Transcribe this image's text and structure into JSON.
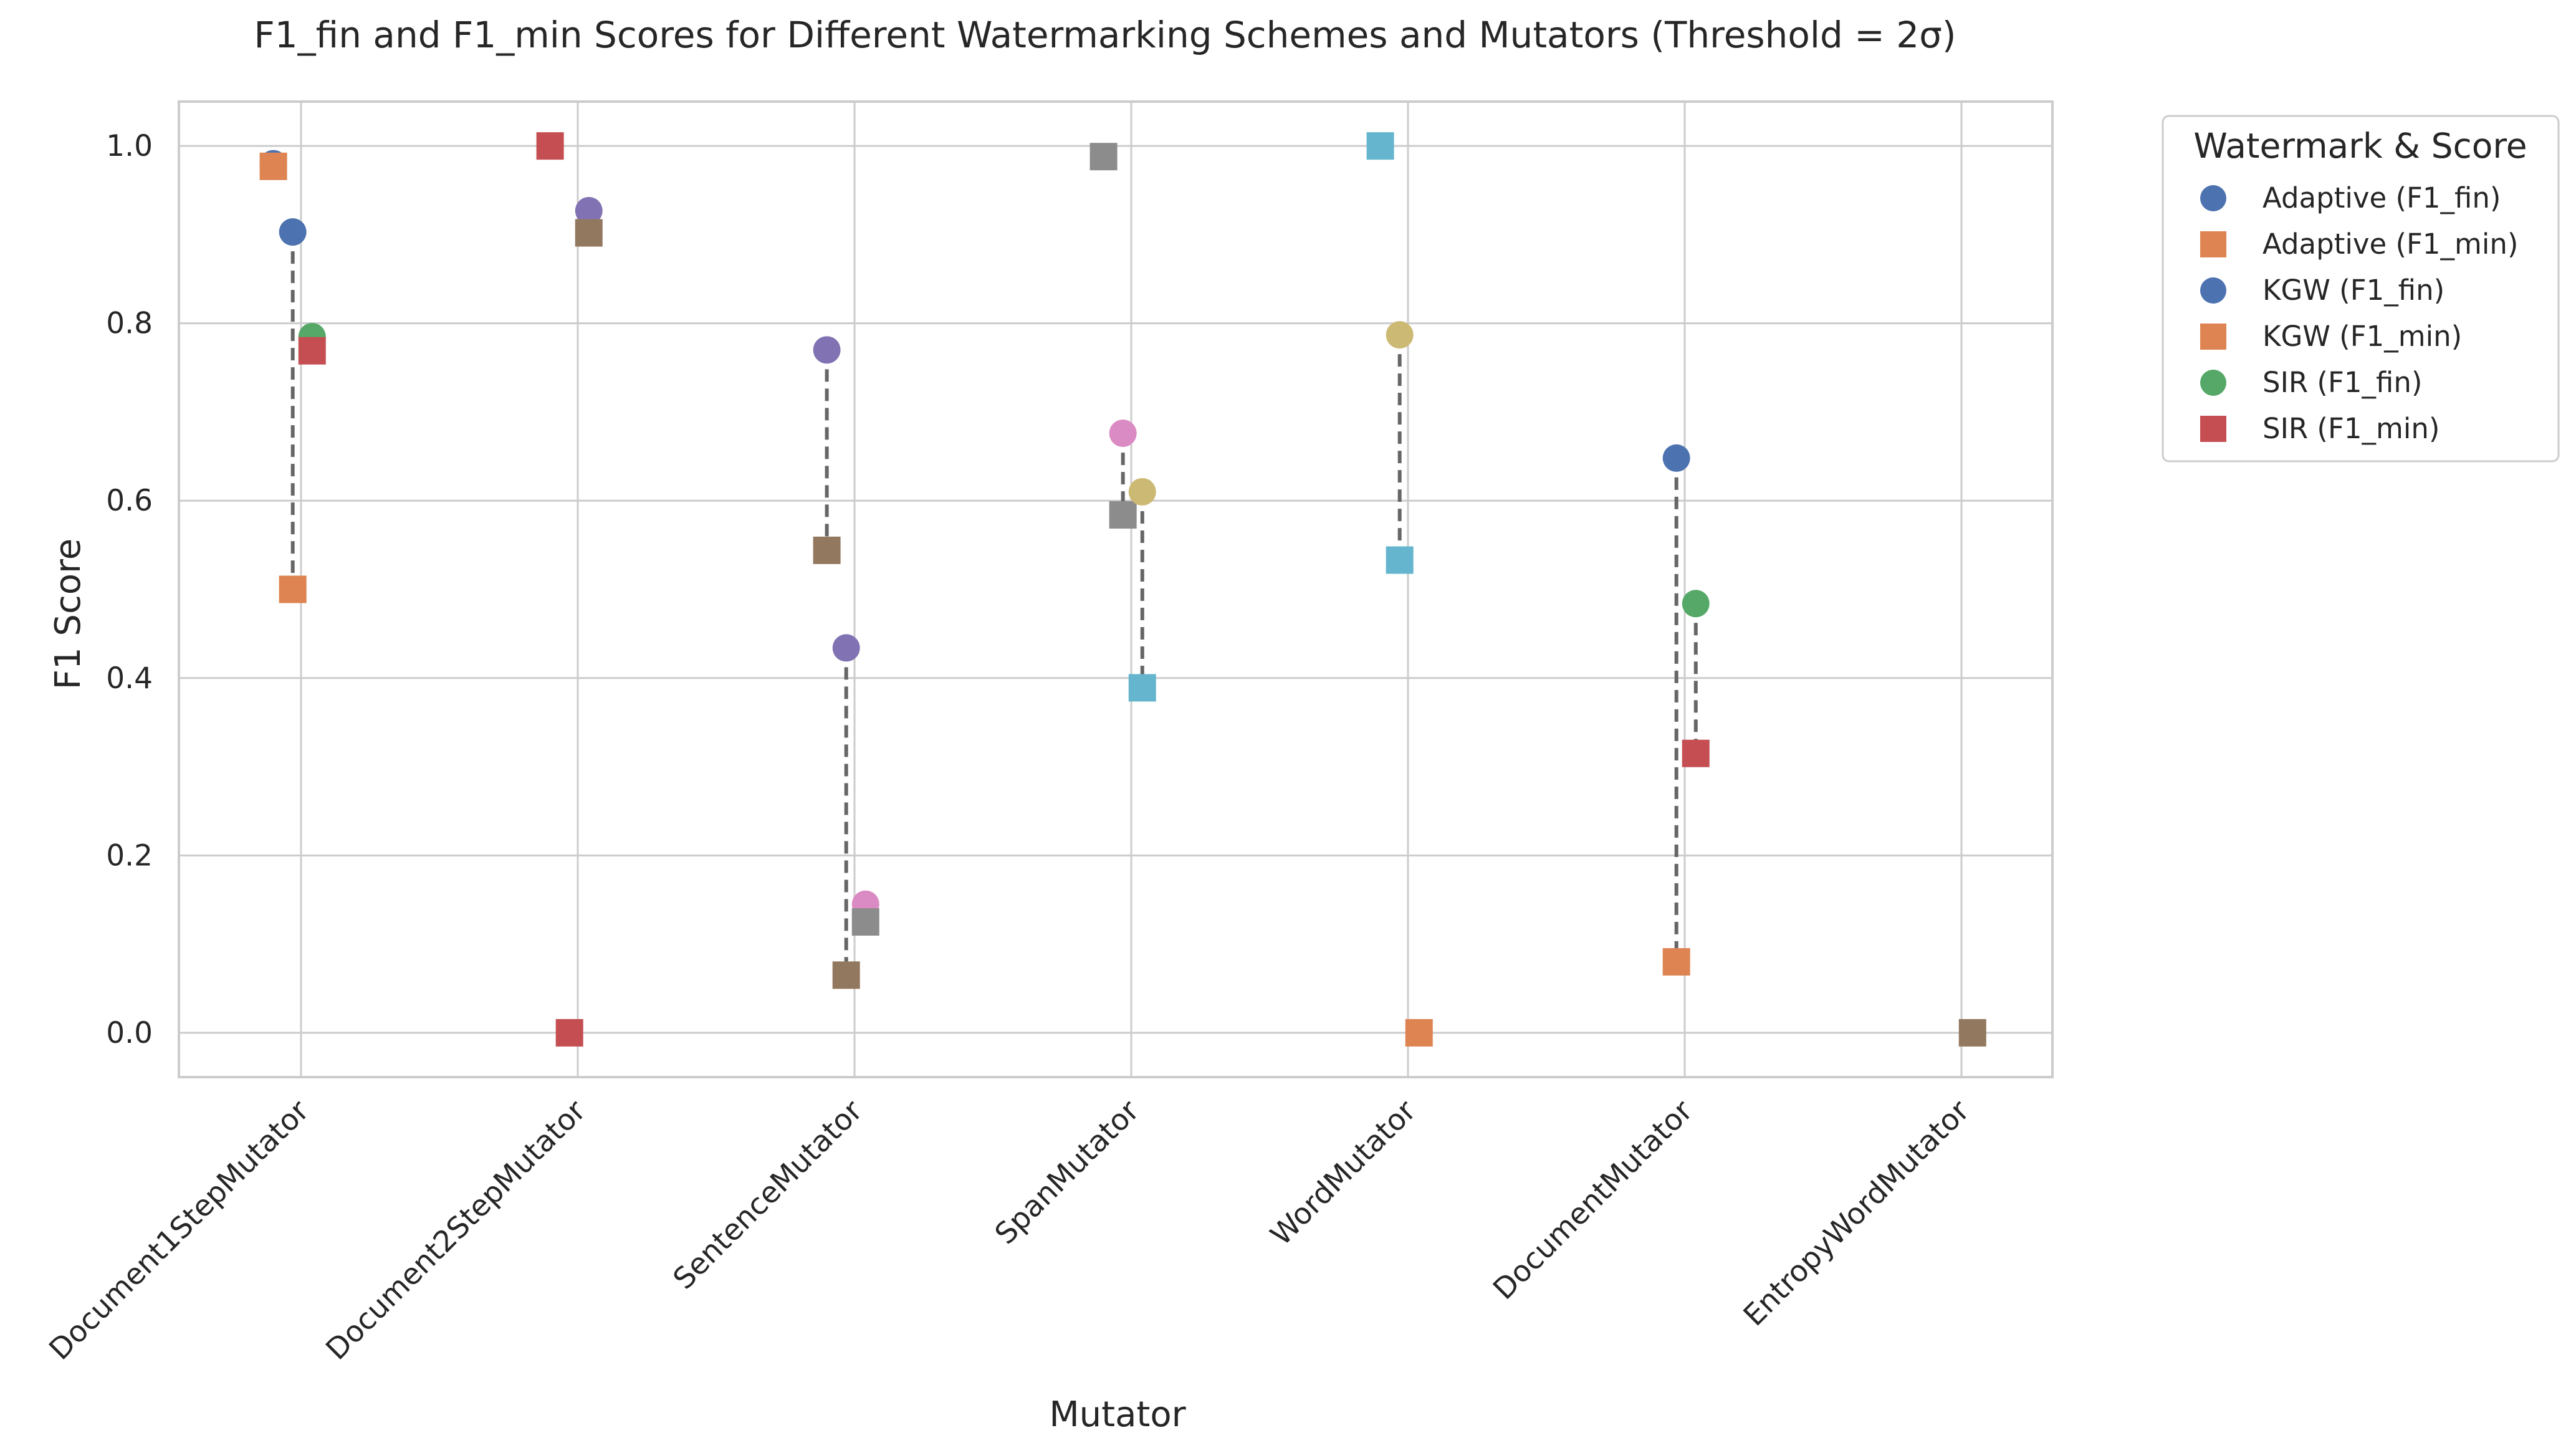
{
  "chart_data": {
    "type": "scatter",
    "title": "F1_fin and F1_min Scores for Different Watermarking Schemes and Mutators (Threshold = 2σ)",
    "xlabel": "Mutator",
    "ylabel": "F1 Score",
    "ylim": [
      -0.05,
      1.05
    ],
    "yticks": [
      "0.0",
      "0.2",
      "0.4",
      "0.6",
      "0.8",
      "1.0"
    ],
    "grid": true,
    "categories": [
      "Document1StepMutator",
      "Document2StepMutator",
      "SentenceMutator",
      "SpanMutator",
      "WordMutator",
      "DocumentMutator",
      "EntropyWordMutator"
    ],
    "legend": {
      "title": "Watermark & Score",
      "placement": "outside-top-right",
      "entries": [
        {
          "label": "Adaptive (F1_fin)",
          "marker": "circle",
          "color": "#4c72b0"
        },
        {
          "label": "Adaptive (F1_min)",
          "marker": "square",
          "color": "#dd8452"
        },
        {
          "label": "KGW (F1_fin)",
          "marker": "circle",
          "color": "#4c72b0"
        },
        {
          "label": "KGW (F1_min)",
          "marker": "square",
          "color": "#dd8452"
        },
        {
          "label": "SIR (F1_fin)",
          "marker": "circle",
          "color": "#55a868"
        },
        {
          "label": "SIR (F1_min)",
          "marker": "square",
          "color": "#c44e52"
        }
      ]
    },
    "points": [
      {
        "category": 0,
        "offset": -0.1,
        "marker": "circle",
        "color": "#4c72b0",
        "value": 0.98
      },
      {
        "category": 0,
        "offset": -0.1,
        "marker": "square",
        "color": "#dd8452",
        "value": 0.977
      },
      {
        "category": 0,
        "offset": -0.03,
        "marker": "circle",
        "color": "#4c72b0",
        "value": 0.903
      },
      {
        "category": 0,
        "offset": -0.03,
        "marker": "square",
        "color": "#dd8452",
        "value": 0.5
      },
      {
        "category": 0,
        "offset": 0.04,
        "marker": "circle",
        "color": "#55a868",
        "value": 0.785
      },
      {
        "category": 0,
        "offset": 0.04,
        "marker": "square",
        "color": "#c44e52",
        "value": 0.769
      },
      {
        "category": 1,
        "offset": -0.1,
        "marker": "square",
        "color": "#c44e52",
        "value": 1.0
      },
      {
        "category": 1,
        "offset": -0.03,
        "marker": "square",
        "color": "#c44e52",
        "value": 0.0
      },
      {
        "category": 1,
        "offset": 0.04,
        "marker": "circle",
        "color": "#8172b3",
        "value": 0.927
      },
      {
        "category": 1,
        "offset": 0.04,
        "marker": "square",
        "color": "#937860",
        "value": 0.902
      },
      {
        "category": 2,
        "offset": -0.1,
        "marker": "circle",
        "color": "#8172b3",
        "value": 0.77
      },
      {
        "category": 2,
        "offset": -0.1,
        "marker": "square",
        "color": "#937860",
        "value": 0.544
      },
      {
        "category": 2,
        "offset": -0.03,
        "marker": "circle",
        "color": "#8172b3",
        "value": 0.434
      },
      {
        "category": 2,
        "offset": -0.03,
        "marker": "square",
        "color": "#937860",
        "value": 0.065
      },
      {
        "category": 2,
        "offset": 0.04,
        "marker": "circle",
        "color": "#da8bc3",
        "value": 0.145
      },
      {
        "category": 2,
        "offset": 0.04,
        "marker": "square",
        "color": "#8c8c8c",
        "value": 0.125
      },
      {
        "category": 3,
        "offset": -0.1,
        "marker": "square",
        "color": "#8c8c8c",
        "value": 0.988
      },
      {
        "category": 3,
        "offset": -0.03,
        "marker": "circle",
        "color": "#da8bc3",
        "value": 0.676
      },
      {
        "category": 3,
        "offset": -0.03,
        "marker": "square",
        "color": "#8c8c8c",
        "value": 0.584
      },
      {
        "category": 3,
        "offset": 0.04,
        "marker": "circle",
        "color": "#ccb974",
        "value": 0.61
      },
      {
        "category": 3,
        "offset": 0.04,
        "marker": "square",
        "color": "#64b5cd",
        "value": 0.389
      },
      {
        "category": 4,
        "offset": -0.1,
        "marker": "square",
        "color": "#64b5cd",
        "value": 1.0
      },
      {
        "category": 4,
        "offset": -0.03,
        "marker": "circle",
        "color": "#ccb974",
        "value": 0.787
      },
      {
        "category": 4,
        "offset": -0.03,
        "marker": "square",
        "color": "#64b5cd",
        "value": 0.533
      },
      {
        "category": 4,
        "offset": 0.04,
        "marker": "square",
        "color": "#dd8452",
        "value": 0.0
      },
      {
        "category": 5,
        "offset": -0.03,
        "marker": "circle",
        "color": "#4c72b0",
        "value": 0.648
      },
      {
        "category": 5,
        "offset": -0.03,
        "marker": "square",
        "color": "#dd8452",
        "value": 0.08
      },
      {
        "category": 5,
        "offset": 0.04,
        "marker": "circle",
        "color": "#55a868",
        "value": 0.484
      },
      {
        "category": 5,
        "offset": 0.04,
        "marker": "square",
        "color": "#c44e52",
        "value": 0.315
      },
      {
        "category": 6,
        "offset": 0.04,
        "marker": "square",
        "color": "#937860",
        "value": 0.0
      }
    ],
    "connectors": [
      {
        "category": 0,
        "offset": -0.1,
        "from": 0.98,
        "to": 0.977
      },
      {
        "category": 0,
        "offset": -0.03,
        "from": 0.903,
        "to": 0.5
      },
      {
        "category": 0,
        "offset": 0.04,
        "from": 0.785,
        "to": 0.769
      },
      {
        "category": 1,
        "offset": 0.04,
        "from": 0.927,
        "to": 0.902
      },
      {
        "category": 2,
        "offset": -0.1,
        "from": 0.77,
        "to": 0.544
      },
      {
        "category": 2,
        "offset": -0.03,
        "from": 0.434,
        "to": 0.065
      },
      {
        "category": 2,
        "offset": 0.04,
        "from": 0.145,
        "to": 0.125
      },
      {
        "category": 3,
        "offset": -0.03,
        "from": 0.676,
        "to": 0.584
      },
      {
        "category": 3,
        "offset": 0.04,
        "from": 0.61,
        "to": 0.389
      },
      {
        "category": 4,
        "offset": -0.03,
        "from": 0.787,
        "to": 0.533
      },
      {
        "category": 5,
        "offset": -0.03,
        "from": 0.648,
        "to": 0.08
      },
      {
        "category": 5,
        "offset": 0.04,
        "from": 0.484,
        "to": 0.315
      }
    ]
  }
}
